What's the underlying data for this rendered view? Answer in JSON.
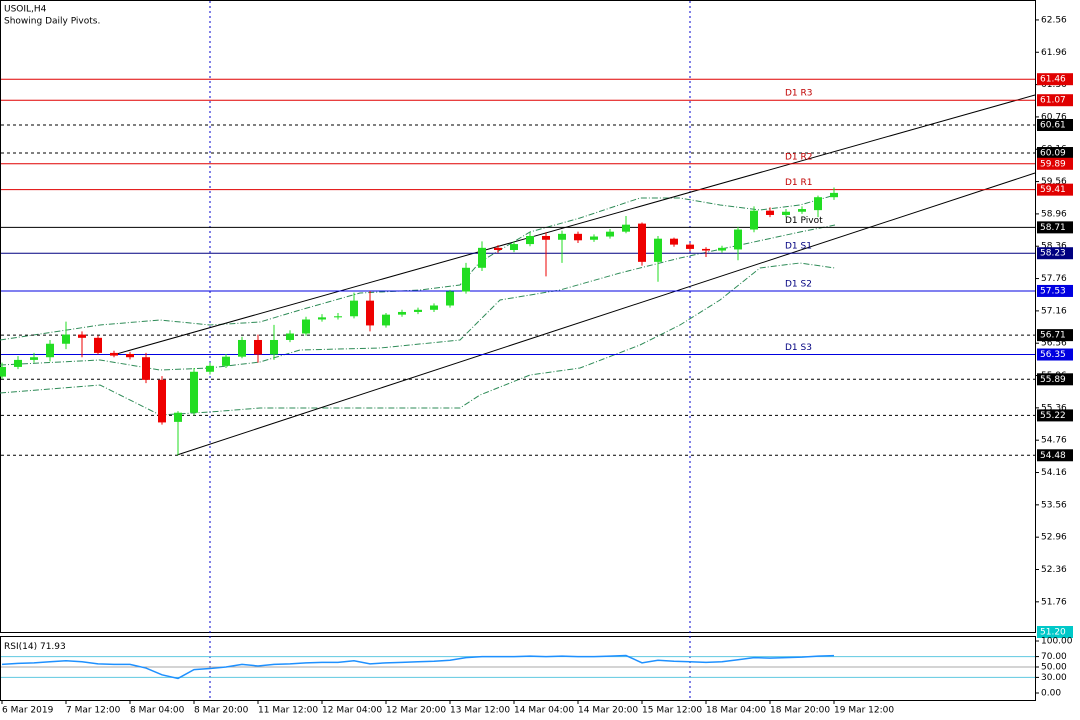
{
  "chart_data": {
    "type": "candlestick",
    "title": "USOIL,H4",
    "subtitle": "Showing Daily Pivots.",
    "up_color": "#22dd22",
    "down_color": "#ee0000",
    "categories": [
      "6 Mar 2019",
      null,
      null,
      null,
      "7 Mar 12:00",
      null,
      null,
      null,
      "8 Mar 04:00",
      null,
      null,
      null,
      "8 Mar 20:00",
      null,
      null,
      null,
      "11 Mar 12:00",
      null,
      null,
      null,
      "12 Mar 04:00",
      null,
      null,
      null,
      "12 Mar 20:00",
      null,
      null,
      null,
      "13 Mar 12:00",
      null,
      null,
      null,
      "14 Mar 04:00",
      null,
      null,
      null,
      "14 Mar 20:00",
      null,
      null,
      null,
      "15 Mar 12:00",
      null,
      null,
      null,
      "18 Mar 04:00",
      null,
      null,
      null,
      "18 Mar 20:00",
      null,
      null,
      null,
      "19 Mar 12:00"
    ],
    "open": [
      55.94,
      56.12,
      56.25,
      56.3,
      56.55,
      56.72,
      56.66,
      56.38,
      56.36,
      56.3,
      55.88,
      55.1,
      55.27,
      56.03,
      56.14,
      56.31,
      56.62,
      56.35,
      56.62,
      56.74,
      57.0,
      57.04,
      57.06,
      57.35,
      56.89,
      57.09,
      57.14,
      57.18,
      57.26,
      57.52,
      57.96,
      58.33,
      58.29,
      58.4,
      58.55,
      58.48,
      58.59,
      58.48,
      58.54,
      58.63,
      58.78,
      58.07,
      58.5,
      58.39,
      58.31,
      58.28,
      58.3,
      58.67,
      59.02,
      58.94,
      59.0,
      59.03,
      59.27
    ],
    "high": [
      56.2,
      56.32,
      56.38,
      56.62,
      56.96,
      56.78,
      56.7,
      56.42,
      56.4,
      56.38,
      55.95,
      55.3,
      56.1,
      56.2,
      56.36,
      56.68,
      56.72,
      56.9,
      56.8,
      57.05,
      57.1,
      57.12,
      57.5,
      57.53,
      57.12,
      57.18,
      57.22,
      57.3,
      57.55,
      58.05,
      58.45,
      58.38,
      58.45,
      58.62,
      58.62,
      58.65,
      58.63,
      58.58,
      58.68,
      58.92,
      58.8,
      58.55,
      58.52,
      58.42,
      58.34,
      58.37,
      58.72,
      59.1,
      59.08,
      59.05,
      59.1,
      59.3,
      59.45
    ],
    "low": [
      55.9,
      56.08,
      56.2,
      56.22,
      56.45,
      56.3,
      56.35,
      56.3,
      56.26,
      55.82,
      55.05,
      54.48,
      55.22,
      55.98,
      56.1,
      56.28,
      56.2,
      56.25,
      56.58,
      56.7,
      56.96,
      57.0,
      57.02,
      56.78,
      56.85,
      57.05,
      57.1,
      57.14,
      57.22,
      57.48,
      57.9,
      58.24,
      58.25,
      58.36,
      57.8,
      58.05,
      58.42,
      58.44,
      58.5,
      58.6,
      58.0,
      57.7,
      58.35,
      58.27,
      58.16,
      58.24,
      58.1,
      58.62,
      58.9,
      58.9,
      58.96,
      58.9,
      59.22
    ],
    "close": [
      56.12,
      56.25,
      56.3,
      56.55,
      56.72,
      56.66,
      56.38,
      56.33,
      56.3,
      55.88,
      55.09,
      55.27,
      56.03,
      56.14,
      56.31,
      56.62,
      56.35,
      56.62,
      56.74,
      57.0,
      57.04,
      57.06,
      57.35,
      56.89,
      57.09,
      57.14,
      57.18,
      57.26,
      57.52,
      57.96,
      58.33,
      58.29,
      58.4,
      58.55,
      58.48,
      58.59,
      58.47,
      58.54,
      58.63,
      58.76,
      58.07,
      58.5,
      58.39,
      58.31,
      58.28,
      58.33,
      58.67,
      59.02,
      58.94,
      59.0,
      59.05,
      59.27,
      59.35
    ],
    "ylim": [
      51.2,
      62.93
    ],
    "yticks": [
      62.56,
      61.96,
      61.36,
      60.76,
      60.16,
      59.56,
      58.96,
      58.36,
      57.76,
      57.16,
      56.56,
      55.96,
      55.36,
      54.76,
      54.16,
      53.56,
      52.96,
      52.36,
      51.76
    ],
    "pivots": [
      {
        "name": "D1 R3",
        "value": 61.07,
        "color": "#e00000"
      },
      {
        "name": "D1 R2",
        "value": 59.89,
        "color": "#e00000"
      },
      {
        "name": "D1 R1",
        "value": 59.41,
        "color": "#e00000"
      },
      {
        "name": "D1 Pivot",
        "value": 58.71,
        "color": "#000000"
      },
      {
        "name": "D1 S1",
        "value": 58.23,
        "color": "#000080"
      },
      {
        "name": "D1 S2",
        "value": 57.53,
        "color": "#0000e0"
      },
      {
        "name": "D1 S3",
        "value": 56.35,
        "color": "#0000e0"
      }
    ],
    "levels": [
      {
        "value": 61.46,
        "color": "#e00000",
        "style": "solid"
      },
      {
        "value": 60.61,
        "color": "#000000",
        "style": "dashed"
      },
      {
        "value": 60.09,
        "color": "#000000",
        "style": "dashed"
      },
      {
        "value": 56.71,
        "color": "#000000",
        "style": "dashed"
      },
      {
        "value": 55.89,
        "color": "#000000",
        "style": "dashed"
      },
      {
        "value": 55.22,
        "color": "#000000",
        "style": "dashed"
      },
      {
        "value": 54.48,
        "color": "#000000",
        "style": "dashed"
      },
      {
        "value": 51.2,
        "label": "51.20",
        "color": "#00c8c8",
        "style": "none"
      }
    ],
    "rsi": {
      "name": "RSI(14)",
      "color": "#1e90ff",
      "values": [
        55,
        57,
        58,
        60,
        62,
        60,
        56,
        55,
        55,
        48,
        35,
        28,
        45,
        47,
        50,
        55,
        52,
        55,
        56,
        58,
        59,
        59,
        62,
        56,
        58,
        59,
        60,
        61,
        63,
        68,
        70,
        70,
        70,
        71,
        70,
        71,
        70,
        70,
        71,
        72,
        58,
        63,
        61,
        60,
        59,
        60,
        64,
        68,
        67,
        68,
        69,
        71,
        71.93
      ],
      "ylim": [
        0,
        100
      ],
      "yticks": [
        {
          "value": 100,
          "label": "100.00"
        },
        {
          "value": 70,
          "label": "70.00"
        },
        {
          "value": 50,
          "label": "50.00"
        },
        {
          "value": 30,
          "label": "30.00"
        },
        {
          "value": 0,
          "label": "0.00"
        }
      ]
    }
  }
}
